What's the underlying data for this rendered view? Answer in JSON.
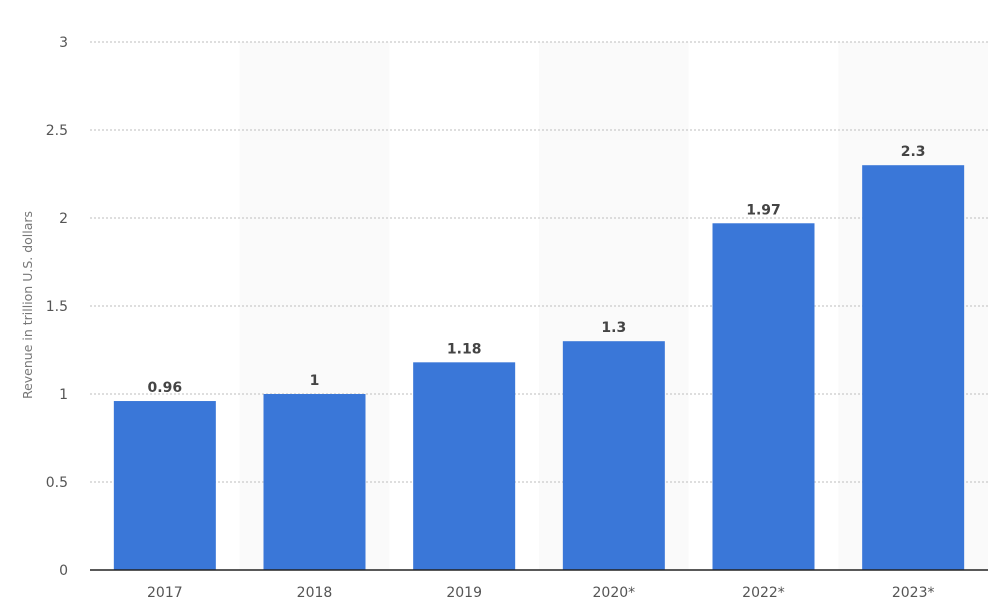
{
  "chart_data": {
    "type": "bar",
    "categories": [
      "2017",
      "2018",
      "2019",
      "2020*",
      "2022*",
      "2023*"
    ],
    "values": [
      0.96,
      1,
      1.18,
      1.3,
      1.97,
      2.3
    ],
    "data_labels": [
      "0.96",
      "1",
      "1.18",
      "1.3",
      "1.97",
      "2.3"
    ],
    "title": "",
    "xlabel": "",
    "ylabel": "Revenue in trillion U.S. dollars",
    "ylim": [
      0,
      3
    ],
    "yticks": [
      "0",
      "0.5",
      "1",
      "1.5",
      "2",
      "2.5",
      "3"
    ],
    "grid": true,
    "bar_color": "#3a77d8"
  }
}
